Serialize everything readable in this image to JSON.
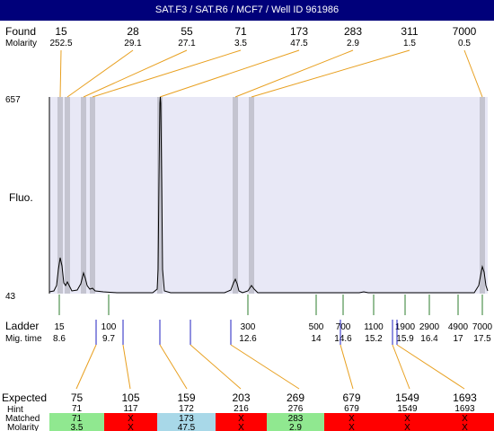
{
  "title": "SAT.F3 / SAT.R6 / MCF7 / Well ID 961986",
  "labels": {
    "found": "Found",
    "molarity": "Molarity",
    "fluo": "Fluo.",
    "ladder": "Ladder",
    "mig_time": "Mig. time",
    "expected": "Expected",
    "hint": "Hint",
    "matched": "Matched",
    "molarity_bottom": "Molarity"
  },
  "y_axis": {
    "top": "657",
    "bottom": "43"
  },
  "colors": {
    "title_bg": "#00007a",
    "plot_bg": "#e8e8f6",
    "peak_band": "#c4c4d0",
    "connector": "#e8a020",
    "ladder_tick": "#2e7d2e",
    "migration_marker": "#2020c0",
    "matched_ok": "#90e890",
    "matched_fail": "#ff0000",
    "matched_found": "#a8d8e8"
  },
  "chart_data": {
    "type": "line",
    "xlabel": "",
    "ylabel": "Fluo.",
    "ylim": [
      43,
      657
    ],
    "found": [
      {
        "size": "15",
        "molarity": "252.5"
      },
      {
        "size": "28",
        "molarity": "29.1"
      },
      {
        "size": "55",
        "molarity": "27.1"
      },
      {
        "size": "71",
        "molarity": "3.5"
      },
      {
        "size": "173",
        "molarity": "47.5"
      },
      {
        "size": "283",
        "molarity": "2.9"
      },
      {
        "size": "311",
        "molarity": "1.5"
      },
      {
        "size": "7000",
        "molarity": "0.5"
      }
    ],
    "ladder": [
      {
        "size": "15",
        "time": "8.6"
      },
      {
        "size": "100",
        "time": "9.7"
      },
      {
        "size": "300",
        "time": "12.6"
      },
      {
        "size": "500",
        "time": "14"
      },
      {
        "size": "700",
        "time": "14.6"
      },
      {
        "size": "1100",
        "time": "15.2"
      },
      {
        "size": "1900",
        "time": "15.9"
      },
      {
        "size": "2900",
        "time": "16.4"
      },
      {
        "size": "4900",
        "time": "17"
      },
      {
        "size": "7000",
        "time": "17.5"
      }
    ],
    "expected": [
      {
        "size": "75",
        "hint": "71",
        "matched": "71",
        "molarity": "3.5",
        "status": "matched"
      },
      {
        "size": "105",
        "hint": "117",
        "matched": "X",
        "molarity": "X",
        "status": "missing"
      },
      {
        "size": "159",
        "hint": "172",
        "matched": "173",
        "molarity": "47.5",
        "status": "found"
      },
      {
        "size": "203",
        "hint": "216",
        "matched": "X",
        "molarity": "X",
        "status": "missing"
      },
      {
        "size": "269",
        "hint": "276",
        "matched": "283",
        "molarity": "2.9",
        "status": "matched"
      },
      {
        "size": "679",
        "hint": "679",
        "matched": "X",
        "molarity": "X",
        "status": "missing"
      },
      {
        "size": "1549",
        "hint": "1549",
        "matched": "X",
        "molarity": "X",
        "status": "missing"
      },
      {
        "size": "1693",
        "hint": "1693",
        "matched": "X",
        "molarity": "X",
        "status": "missing"
      }
    ]
  }
}
